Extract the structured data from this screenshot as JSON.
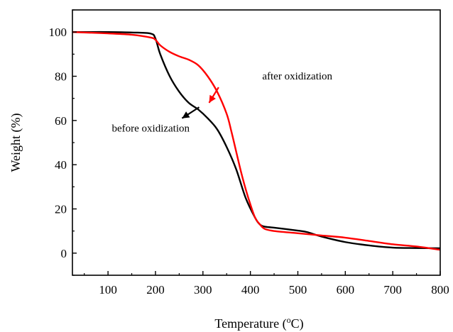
{
  "chart_data": {
    "type": "line",
    "xlabel": "Temperature (",
    "xlabel_sup": "o",
    "xlabel_end": "C)",
    "ylabel": "Weight (%)",
    "xlim": [
      25,
      800
    ],
    "ylim": [
      -10,
      110
    ],
    "xticks": [
      100,
      200,
      300,
      400,
      500,
      600,
      700,
      800
    ],
    "yticks": [
      0,
      20,
      40,
      60,
      80,
      100
    ],
    "grid": false,
    "legend": "none",
    "series": [
      {
        "key": "before",
        "color": "#000000",
        "x": [
          25,
          50,
          100,
          150,
          190,
          200,
          210,
          230,
          250,
          270,
          290,
          310,
          330,
          350,
          370,
          390,
          410,
          420,
          430,
          450,
          500,
          520,
          550,
          600,
          650,
          700,
          750,
          800
        ],
        "y": [
          100,
          100,
          100,
          99.8,
          99.3,
          97,
          90,
          80,
          73,
          68,
          65,
          61,
          56,
          48,
          38,
          25,
          16,
          13,
          12,
          11.5,
          10.2,
          9.5,
          7.5,
          5,
          3.5,
          2.5,
          2.3,
          2.2
        ]
      },
      {
        "key": "after",
        "color": "#ff0000",
        "x": [
          25,
          50,
          100,
          150,
          190,
          200,
          210,
          230,
          250,
          270,
          290,
          310,
          330,
          350,
          360,
          370,
          380,
          390,
          400,
          410,
          420,
          430,
          450,
          500,
          550,
          600,
          650,
          700,
          750,
          800
        ],
        "y": [
          100,
          99.8,
          99.4,
          98.8,
          97.5,
          96.5,
          94,
          91,
          89,
          87.5,
          85,
          80,
          73,
          63,
          55,
          46,
          37,
          29,
          22,
          16,
          13,
          11,
          10,
          9,
          8,
          7,
          5.5,
          4,
          3,
          1.5
        ]
      }
    ],
    "annotations": [
      {
        "key": "after",
        "text": "after oxidization",
        "x": 425,
        "y": 78.5,
        "arrow_from": [
          333,
          75
        ],
        "arrow_to": [
          313,
          68
        ]
      },
      {
        "key": "before",
        "text": "before oxidization",
        "x": 108,
        "y": 55,
        "arrow_from": [
          292,
          66
        ],
        "arrow_to": [
          256,
          61
        ]
      }
    ]
  }
}
